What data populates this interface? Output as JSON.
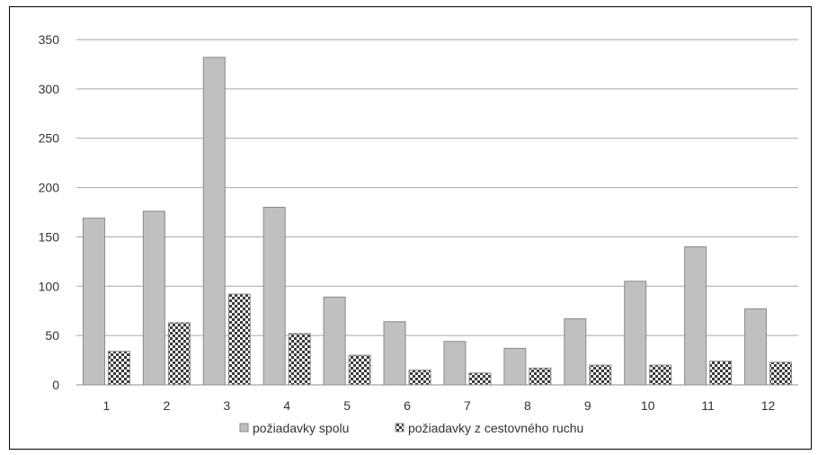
{
  "chart_data": {
    "type": "bar",
    "categories": [
      "1",
      "2",
      "3",
      "4",
      "5",
      "6",
      "7",
      "8",
      "9",
      "10",
      "11",
      "12"
    ],
    "series": [
      {
        "name": "požiadavky spolu",
        "values": [
          169,
          176,
          332,
          180,
          89,
          64,
          44,
          37,
          67,
          105,
          140,
          77
        ],
        "pattern": "solid"
      },
      {
        "name": "požiadavky z cestovného ruchu",
        "values": [
          34,
          63,
          92,
          52,
          30,
          15,
          12,
          17,
          20,
          20,
          24,
          23
        ],
        "pattern": "checker"
      }
    ],
    "yticks": [
      "0",
      "50",
      "100",
      "150",
      "200",
      "250",
      "300",
      "350"
    ],
    "ylim": [
      0,
      350
    ],
    "grid": true,
    "legend": "bottom",
    "colors": {
      "solid_fill": "#c0c0c0",
      "solid_stroke": "#8a8a8a",
      "checker_dark": "#3a3a3a",
      "checker_light": "#ffffff",
      "grid": "#a6a6a6",
      "axis": "#8c8c8c"
    }
  }
}
